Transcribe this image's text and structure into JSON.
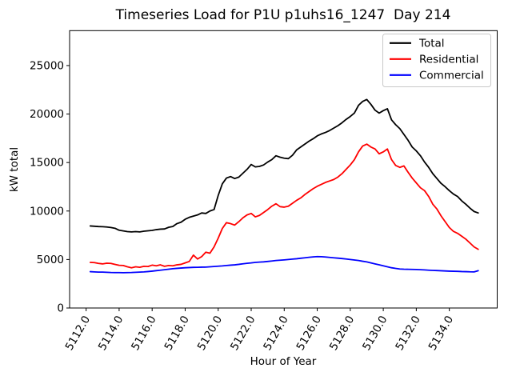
{
  "figure": {
    "background": "#ffffff",
    "frame_color": "#000000"
  },
  "chart_data": {
    "type": "line",
    "title": "Timeseries Load for P1U p1uhs16_1247  Day 214",
    "xlabel": "Hour of Year",
    "ylabel": "kW total",
    "xlim": [
      5111.0,
      5136.9
    ],
    "ylim": [
      0,
      28600
    ],
    "grid": false,
    "legend_position": "upper right",
    "xtick_values": [
      5112,
      5114,
      5116,
      5118,
      5120,
      5122,
      5124,
      5126,
      5128,
      5130,
      5132,
      5134
    ],
    "xtick_labels": [
      "5112.0",
      "5114.0",
      "5116.0",
      "5118.0",
      "5120.0",
      "5122.0",
      "5124.0",
      "5126.0",
      "5128.0",
      "5130.0",
      "5132.0",
      "5134.0"
    ],
    "ytick_values": [
      0,
      5000,
      10000,
      15000,
      20000,
      25000
    ],
    "ytick_labels": [
      "0",
      "5000",
      "10000",
      "15000",
      "20000",
      "25000"
    ],
    "x_start": 5112.25,
    "x_step": 0.25,
    "series": [
      {
        "name": "Total",
        "color": "#000000",
        "values": [
          8460,
          8430,
          8400,
          8380,
          8350,
          8300,
          8220,
          8020,
          7950,
          7880,
          7850,
          7880,
          7850,
          7920,
          7960,
          8000,
          8080,
          8130,
          8150,
          8320,
          8400,
          8700,
          8850,
          9150,
          9350,
          9480,
          9600,
          9800,
          9750,
          10000,
          10150,
          11600,
          12800,
          13400,
          13550,
          13350,
          13500,
          13900,
          14300,
          14800,
          14550,
          14600,
          14750,
          15050,
          15300,
          15700,
          15550,
          15450,
          15400,
          15750,
          16300,
          16600,
          16900,
          17200,
          17450,
          17750,
          17950,
          18100,
          18300,
          18550,
          18800,
          19100,
          19450,
          19750,
          20100,
          20900,
          21300,
          21500,
          21000,
          20400,
          20100,
          20350,
          20550,
          19400,
          18900,
          18500,
          17900,
          17300,
          16600,
          16200,
          15700,
          15050,
          14500,
          13850,
          13350,
          12850,
          12500,
          12100,
          11750,
          11500,
          11050,
          10700,
          10300,
          9950,
          9800
        ]
      },
      {
        "name": "Residential",
        "color": "#ff0000",
        "values": [
          4700,
          4680,
          4600,
          4550,
          4620,
          4600,
          4500,
          4400,
          4380,
          4250,
          4150,
          4250,
          4200,
          4300,
          4280,
          4420,
          4350,
          4450,
          4300,
          4380,
          4350,
          4450,
          4500,
          4650,
          4800,
          5450,
          5050,
          5300,
          5750,
          5650,
          6300,
          7200,
          8200,
          8800,
          8700,
          8550,
          8900,
          9300,
          9600,
          9750,
          9400,
          9550,
          9850,
          10150,
          10500,
          10750,
          10450,
          10400,
          10500,
          10800,
          11100,
          11350,
          11700,
          12000,
          12300,
          12550,
          12750,
          12950,
          13100,
          13250,
          13500,
          13850,
          14300,
          14750,
          15300,
          16100,
          16700,
          16900,
          16600,
          16400,
          15900,
          16100,
          16400,
          15300,
          14700,
          14500,
          14650,
          14000,
          13400,
          12900,
          12400,
          12100,
          11500,
          10700,
          10200,
          9500,
          8900,
          8300,
          7900,
          7700,
          7400,
          7100,
          6700,
          6300,
          6050
        ]
      },
      {
        "name": "Commercial",
        "color": "#0000ff",
        "values": [
          3750,
          3720,
          3700,
          3700,
          3680,
          3660,
          3650,
          3650,
          3640,
          3650,
          3660,
          3680,
          3700,
          3720,
          3760,
          3800,
          3850,
          3900,
          3950,
          4000,
          4050,
          4090,
          4120,
          4150,
          4170,
          4190,
          4200,
          4210,
          4220,
          4250,
          4280,
          4310,
          4340,
          4380,
          4420,
          4450,
          4500,
          4560,
          4610,
          4650,
          4700,
          4730,
          4760,
          4800,
          4850,
          4900,
          4930,
          4960,
          5000,
          5040,
          5080,
          5130,
          5180,
          5230,
          5270,
          5300,
          5290,
          5260,
          5220,
          5180,
          5140,
          5100,
          5050,
          5000,
          4950,
          4900,
          4820,
          4750,
          4650,
          4550,
          4450,
          4350,
          4250,
          4150,
          4080,
          4020,
          4000,
          3990,
          3980,
          3970,
          3950,
          3930,
          3900,
          3880,
          3860,
          3840,
          3820,
          3800,
          3790,
          3780,
          3760,
          3750,
          3730,
          3720,
          3850
        ]
      }
    ]
  }
}
